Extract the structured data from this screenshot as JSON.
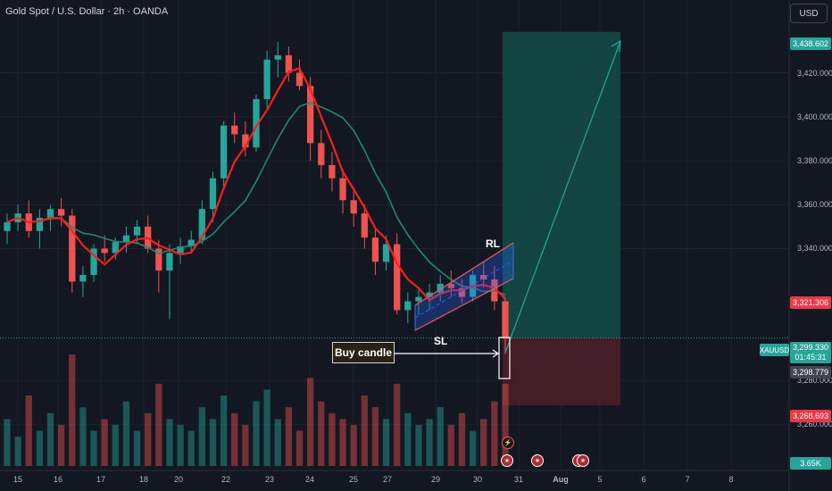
{
  "header": {
    "title": "Gold Spot / U.S. Dollar · 2h · OANDA",
    "currency_button": "USD"
  },
  "price_axis": {
    "ticks": [
      "3,420.000",
      "3,400.000",
      "3,380.000",
      "3,360.000",
      "3,340.000",
      "3,280.000",
      "3,260.000"
    ],
    "labels": {
      "target": "3,438.602",
      "resistance": "3,321.306",
      "current": "3,299.330",
      "countdown": "01:45:31",
      "entry": "3,298.779",
      "stop": "3,268.693",
      "volume": "3.65K"
    },
    "symbol_tag": "XAUUSD"
  },
  "time_axis": {
    "ticks": [
      "15",
      "16",
      "17",
      "18",
      "20",
      "22",
      "23",
      "24",
      "25",
      "27",
      "29",
      "30",
      "31",
      "Aug",
      "5",
      "6",
      "7",
      "8"
    ]
  },
  "annotations": {
    "rl": "RL",
    "sl": "SL",
    "buy_candle": "Buy candle"
  },
  "event_icons": [
    "flag-icon",
    "flag-icon",
    "flag-icon",
    "flag-icon"
  ],
  "colors": {
    "up": "#26a69a",
    "down": "#ef5350",
    "ma_fast": "#ff1e1e",
    "ma_slow": "#1f8a70",
    "target_zone": "#134e47",
    "stop_zone": "#4a1f27",
    "channel": "#2962ff"
  },
  "chart_data": {
    "type": "candlestick",
    "symbol": "XAUUSD",
    "ohlc": [
      {
        "o": 3348,
        "h": 3356,
        "l": 3342,
        "c": 3352
      },
      {
        "o": 3352,
        "h": 3360,
        "l": 3348,
        "c": 3356
      },
      {
        "o": 3356,
        "h": 3362,
        "l": 3345,
        "c": 3348
      },
      {
        "o": 3348,
        "h": 3358,
        "l": 3340,
        "c": 3354
      },
      {
        "o": 3354,
        "h": 3360,
        "l": 3348,
        "c": 3358
      },
      {
        "o": 3358,
        "h": 3363,
        "l": 3350,
        "c": 3355
      },
      {
        "o": 3355,
        "h": 3358,
        "l": 3320,
        "c": 3325
      },
      {
        "o": 3325,
        "h": 3332,
        "l": 3318,
        "c": 3328
      },
      {
        "o": 3328,
        "h": 3342,
        "l": 3325,
        "c": 3340
      },
      {
        "o": 3340,
        "h": 3346,
        "l": 3334,
        "c": 3338
      },
      {
        "o": 3338,
        "h": 3345,
        "l": 3335,
        "c": 3343
      },
      {
        "o": 3343,
        "h": 3350,
        "l": 3338,
        "c": 3346
      },
      {
        "o": 3346,
        "h": 3353,
        "l": 3342,
        "c": 3350
      },
      {
        "o": 3350,
        "h": 3355,
        "l": 3338,
        "c": 3340
      },
      {
        "o": 3340,
        "h": 3344,
        "l": 3320,
        "c": 3330
      },
      {
        "o": 3330,
        "h": 3342,
        "l": 3308,
        "c": 3338
      },
      {
        "o": 3338,
        "h": 3345,
        "l": 3333,
        "c": 3341
      },
      {
        "o": 3341,
        "h": 3348,
        "l": 3338,
        "c": 3344
      },
      {
        "o": 3344,
        "h": 3362,
        "l": 3342,
        "c": 3358
      },
      {
        "o": 3358,
        "h": 3375,
        "l": 3352,
        "c": 3372
      },
      {
        "o": 3372,
        "h": 3398,
        "l": 3368,
        "c": 3396
      },
      {
        "o": 3396,
        "h": 3402,
        "l": 3388,
        "c": 3392
      },
      {
        "o": 3392,
        "h": 3398,
        "l": 3382,
        "c": 3386
      },
      {
        "o": 3386,
        "h": 3410,
        "l": 3384,
        "c": 3408
      },
      {
        "o": 3408,
        "h": 3430,
        "l": 3404,
        "c": 3426
      },
      {
        "o": 3426,
        "h": 3434,
        "l": 3418,
        "c": 3428
      },
      {
        "o": 3428,
        "h": 3432,
        "l": 3416,
        "c": 3420
      },
      {
        "o": 3420,
        "h": 3426,
        "l": 3412,
        "c": 3414
      },
      {
        "o": 3414,
        "h": 3418,
        "l": 3380,
        "c": 3388
      },
      {
        "o": 3388,
        "h": 3394,
        "l": 3372,
        "c": 3378
      },
      {
        "o": 3378,
        "h": 3384,
        "l": 3366,
        "c": 3372
      },
      {
        "o": 3372,
        "h": 3376,
        "l": 3356,
        "c": 3362
      },
      {
        "o": 3362,
        "h": 3368,
        "l": 3350,
        "c": 3356
      },
      {
        "o": 3356,
        "h": 3360,
        "l": 3340,
        "c": 3345
      },
      {
        "o": 3345,
        "h": 3350,
        "l": 3328,
        "c": 3334
      },
      {
        "o": 3334,
        "h": 3346,
        "l": 3330,
        "c": 3342
      },
      {
        "o": 3342,
        "h": 3347,
        "l": 3310,
        "c": 3312
      },
      {
        "o": 3312,
        "h": 3320,
        "l": 3306,
        "c": 3316
      },
      {
        "o": 3316,
        "h": 3322,
        "l": 3310,
        "c": 3318
      },
      {
        "o": 3318,
        "h": 3324,
        "l": 3312,
        "c": 3320
      },
      {
        "o": 3320,
        "h": 3328,
        "l": 3316,
        "c": 3324
      },
      {
        "o": 3324,
        "h": 3330,
        "l": 3318,
        "c": 3322
      },
      {
        "o": 3322,
        "h": 3326,
        "l": 3315,
        "c": 3318
      },
      {
        "o": 3318,
        "h": 3330,
        "l": 3316,
        "c": 3328
      },
      {
        "o": 3328,
        "h": 3334,
        "l": 3322,
        "c": 3326
      },
      {
        "o": 3326,
        "h": 3332,
        "l": 3312,
        "c": 3316
      },
      {
        "o": 3316,
        "h": 3318,
        "l": 3292,
        "c": 3299
      }
    ],
    "volume": [
      40,
      25,
      60,
      30,
      45,
      35,
      95,
      50,
      30,
      40,
      35,
      55,
      30,
      45,
      70,
      40,
      35,
      30,
      50,
      40,
      60,
      45,
      35,
      55,
      65,
      40,
      50,
      30,
      75,
      55,
      45,
      40,
      35,
      60,
      50,
      40,
      70,
      45,
      35,
      40,
      50,
      35,
      45,
      30,
      40,
      55,
      70
    ],
    "ylim": [
      3250,
      3445
    ]
  }
}
